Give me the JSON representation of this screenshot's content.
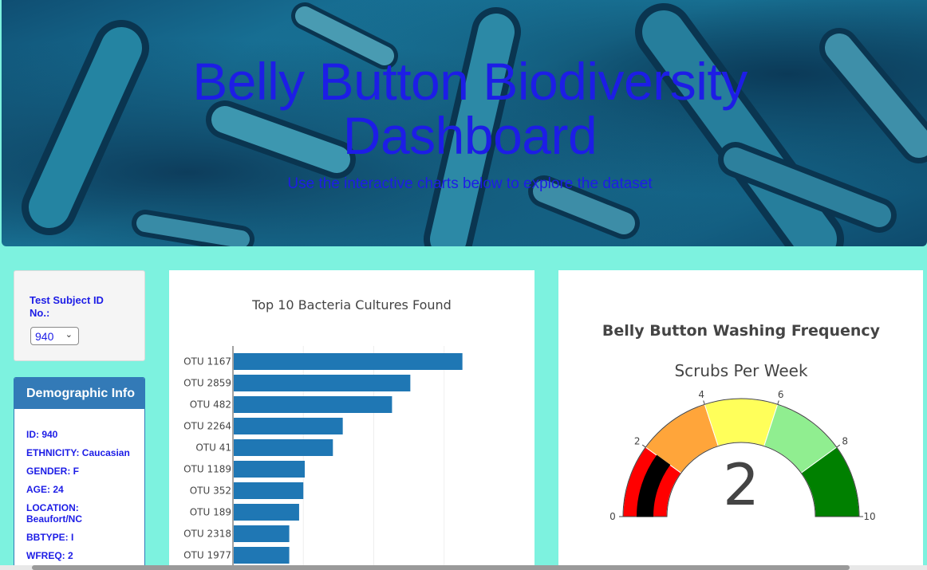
{
  "header": {
    "title": "Belly Button Biodiversity Dashboard",
    "subtitle": "Use the interactive charts below to explore the dataset"
  },
  "selector": {
    "label": "Test Subject ID No.:",
    "selected": "940"
  },
  "demographics": {
    "title": "Demographic Info",
    "items": [
      "ID: 940",
      "ETHNICITY: Caucasian",
      "GENDER: F",
      "AGE: 24",
      "LOCATION: Beaufort/NC",
      "BBTYPE: I",
      "WFREQ: 2"
    ]
  },
  "colors": {
    "page_bg": "#7df2df",
    "title_blue": "#1d1de6",
    "bar": "#1f77b4",
    "demo_header": "#337ab7"
  },
  "chart_data": [
    {
      "type": "bar",
      "orientation": "horizontal",
      "title": "Top 10 Bacteria Cultures Found",
      "categories": [
        "OTU 1167",
        "OTU 2859",
        "OTU 482",
        "OTU 2264",
        "OTU 41",
        "OTU 1189",
        "OTU 352",
        "OTU 189",
        "OTU 2318",
        "OTU 1977"
      ],
      "values": [
        163,
        126,
        113,
        78,
        71,
        51,
        50,
        47,
        40,
        40
      ],
      "xlim": [
        0,
        170
      ],
      "grid": true
    },
    {
      "type": "gauge",
      "title": "Belly Button Washing Frequency",
      "subtitle": "Scrubs Per Week",
      "value": 2,
      "range": [
        0,
        10
      ],
      "ticks": [
        0,
        2,
        4,
        6,
        8,
        10
      ],
      "steps": [
        {
          "range": [
            0,
            2
          ],
          "color": "#ff0000"
        },
        {
          "range": [
            2,
            4
          ],
          "color": "#ffa53a"
        },
        {
          "range": [
            4,
            6
          ],
          "color": "#ffff5a"
        },
        {
          "range": [
            6,
            8
          ],
          "color": "#90ee90"
        },
        {
          "range": [
            8,
            10
          ],
          "color": "#008000"
        }
      ],
      "bar_color": "#000000"
    }
  ]
}
